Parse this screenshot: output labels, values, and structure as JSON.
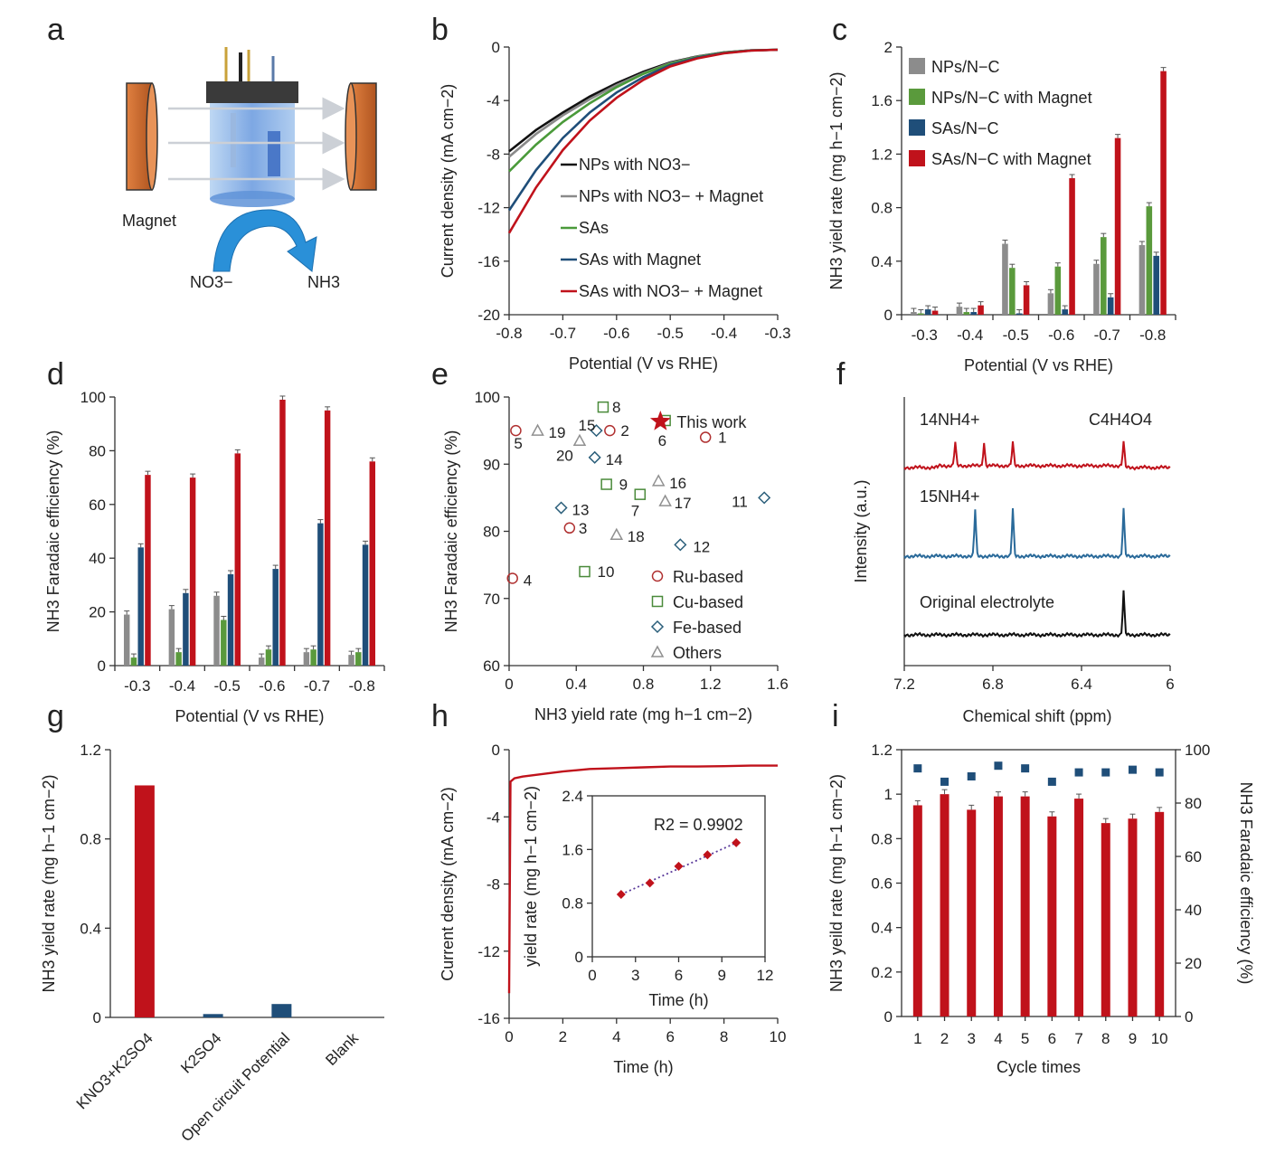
{
  "panels": {
    "a": {
      "label": "a",
      "magnet_label": "Magnet",
      "reactant": "NO3−",
      "product": "NH3",
      "colors": {
        "magnet": "#c8642a",
        "cell": "#8fb8e8",
        "arrow": "#2a90d8",
        "cap": "#3a3a3a"
      }
    },
    "b": {
      "label": "b",
      "chart_data": {
        "type": "line",
        "xlabel": "Potential (V vs RHE)",
        "ylabel": "Current density (mA cm−2)",
        "xlim": [
          -0.8,
          -0.3
        ],
        "ylim": [
          -20,
          0
        ],
        "xticks": [
          "-0.8",
          "-0.7",
          "-0.6",
          "-0.5",
          "-0.4",
          "-0.3"
        ],
        "yticks": [
          "0",
          "-4",
          "-8",
          "-12",
          "-16",
          "-20"
        ],
        "legend_position": "right",
        "series": [
          {
            "name": "NPs with NO3−",
            "color": "#111111",
            "x": [
              -0.8,
              -0.75,
              -0.7,
              -0.65,
              -0.6,
              -0.55,
              -0.5,
              -0.45,
              -0.4,
              -0.35,
              -0.3
            ],
            "y": [
              -7.8,
              -6.2,
              -4.9,
              -3.7,
              -2.7,
              -1.85,
              -1.15,
              -0.7,
              -0.4,
              -0.25,
              -0.2
            ]
          },
          {
            "name": "NPs with NO3− + Magnet",
            "color": "#8a8a8a",
            "x": [
              -0.8,
              -0.75,
              -0.7,
              -0.65,
              -0.6,
              -0.55,
              -0.5,
              -0.45,
              -0.4,
              -0.35,
              -0.3
            ],
            "y": [
              -8.2,
              -6.5,
              -5.1,
              -3.9,
              -2.85,
              -1.95,
              -1.2,
              -0.72,
              -0.42,
              -0.25,
              -0.2
            ]
          },
          {
            "name": "SAs",
            "color": "#4a9a3a",
            "x": [
              -0.8,
              -0.75,
              -0.7,
              -0.65,
              -0.6,
              -0.55,
              -0.5,
              -0.45,
              -0.4,
              -0.35,
              -0.3
            ],
            "y": [
              -9.3,
              -7.3,
              -5.6,
              -4.2,
              -3.0,
              -2.0,
              -1.25,
              -0.75,
              -0.42,
              -0.25,
              -0.2
            ]
          },
          {
            "name": "SAs with Magnet",
            "color": "#1f4e79",
            "x": [
              -0.8,
              -0.75,
              -0.7,
              -0.65,
              -0.6,
              -0.55,
              -0.5,
              -0.45,
              -0.4,
              -0.35,
              -0.3
            ],
            "y": [
              -12.2,
              -9.2,
              -6.8,
              -4.9,
              -3.4,
              -2.25,
              -1.35,
              -0.8,
              -0.45,
              -0.26,
              -0.2
            ]
          },
          {
            "name": "SAs with NO3− + Magnet",
            "color": "#c0121b",
            "x": [
              -0.8,
              -0.75,
              -0.7,
              -0.65,
              -0.6,
              -0.55,
              -0.5,
              -0.45,
              -0.4,
              -0.35,
              -0.3
            ],
            "y": [
              -13.9,
              -10.5,
              -7.7,
              -5.5,
              -3.8,
              -2.45,
              -1.45,
              -0.85,
              -0.47,
              -0.27,
              -0.2
            ]
          }
        ]
      }
    },
    "c": {
      "label": "c",
      "chart_data": {
        "type": "bar",
        "xlabel": "Potential (V vs RHE)",
        "ylabel": "NH3 yield rate (mg h−1 cm−2)",
        "categories": [
          "-0.3",
          "-0.4",
          "-0.5",
          "-0.6",
          "-0.7",
          "-0.8"
        ],
        "ylim": [
          0,
          2
        ],
        "yticks": [
          "0",
          "0.4",
          "0.8",
          "1.2",
          "1.6",
          "2"
        ],
        "legend_position": "top-left",
        "series": [
          {
            "name": "NPs/N−C",
            "color": "#8c8c8c",
            "values": [
              0.02,
              0.06,
              0.53,
              0.16,
              0.38,
              0.52
            ]
          },
          {
            "name": "NPs/N−C with Magnet",
            "color": "#5a9a3c",
            "values": [
              0.01,
              0.02,
              0.35,
              0.36,
              0.58,
              0.81
            ]
          },
          {
            "name": "SAs/N−C",
            "color": "#1f4e79",
            "values": [
              0.04,
              0.02,
              0.01,
              0.04,
              0.13,
              0.44
            ]
          },
          {
            "name": "SAs/N−C with Magnet",
            "color": "#c0121b",
            "values": [
              0.03,
              0.07,
              0.22,
              1.02,
              1.32,
              1.82
            ]
          }
        ]
      }
    },
    "d": {
      "label": "d",
      "chart_data": {
        "type": "bar",
        "xlabel": "Potential (V vs RHE)",
        "ylabel": "NH3 Faradaic efficiency (%)",
        "categories": [
          "-0.3",
          "-0.4",
          "-0.5",
          "-0.6",
          "-0.7",
          "-0.8"
        ],
        "ylim": [
          0,
          100
        ],
        "yticks": [
          "0",
          "20",
          "40",
          "60",
          "80",
          "100"
        ],
        "series": [
          {
            "name": "NPs/N−C",
            "color": "#8c8c8c",
            "values": [
              19,
              21,
              26,
              3,
              5,
              4
            ]
          },
          {
            "name": "NPs/N−C with Magnet",
            "color": "#5a9a3c",
            "values": [
              3,
              5,
              17,
              6,
              6,
              5
            ]
          },
          {
            "name": "SAs/N−C",
            "color": "#1f4e79",
            "values": [
              44,
              27,
              34,
              36,
              53,
              45
            ]
          },
          {
            "name": "SAs/N−C with Magnet",
            "color": "#c0121b",
            "values": [
              71,
              70,
              79,
              99,
              95,
              76
            ]
          }
        ]
      }
    },
    "e": {
      "label": "e",
      "chart_data": {
        "type": "scatter",
        "xlabel": "NH3 yield rate (mg h−1 cm−2)",
        "ylabel": "NH3 Faradaic efficiency (%)",
        "xlim": [
          0,
          1.6
        ],
        "ylim": [
          60,
          100
        ],
        "xticks": [
          "0",
          "0.4",
          "0.8",
          "1.2",
          "1.6"
        ],
        "yticks": [
          "60",
          "70",
          "80",
          "90",
          "100"
        ],
        "legend_position": "bottom-right",
        "legend": [
          {
            "name": "Ru-based",
            "marker": "circle",
            "color": "#b03030"
          },
          {
            "name": "Cu-based",
            "marker": "square",
            "color": "#4a8a3a"
          },
          {
            "name": "Fe-based",
            "marker": "diamond",
            "color": "#2a5e7a"
          },
          {
            "name": "Others",
            "marker": "triangle",
            "color": "#909090"
          }
        ],
        "this_work": {
          "label": "This work",
          "x": 1.02,
          "y": 96.5,
          "color": "#c0121b"
        },
        "points": [
          {
            "label": "1",
            "x": 1.17,
            "y": 94,
            "type": "circle"
          },
          {
            "label": "2",
            "x": 0.6,
            "y": 95,
            "type": "circle"
          },
          {
            "label": "3",
            "x": 0.36,
            "y": 80.5,
            "type": "circle"
          },
          {
            "label": "4",
            "x": 0.02,
            "y": 73,
            "type": "circle"
          },
          {
            "label": "5",
            "x": 0.04,
            "y": 95,
            "type": "circle"
          },
          {
            "label": "6",
            "x": 0.93,
            "y": 96.5,
            "type": "square"
          },
          {
            "label": "7",
            "x": 0.78,
            "y": 85.5,
            "type": "square"
          },
          {
            "label": "8",
            "x": 0.56,
            "y": 98.5,
            "type": "square"
          },
          {
            "label": "9",
            "x": 0.58,
            "y": 87,
            "type": "square"
          },
          {
            "label": "10",
            "x": 0.45,
            "y": 74,
            "type": "square"
          },
          {
            "label": "11",
            "x": 1.52,
            "y": 85,
            "type": "diamond"
          },
          {
            "label": "12",
            "x": 1.02,
            "y": 78,
            "type": "diamond"
          },
          {
            "label": "13",
            "x": 0.31,
            "y": 83.5,
            "type": "diamond"
          },
          {
            "label": "14",
            "x": 0.51,
            "y": 91,
            "type": "diamond"
          },
          {
            "label": "15",
            "x": 0.52,
            "y": 95,
            "type": "diamond"
          },
          {
            "label": "16",
            "x": 0.89,
            "y": 87.5,
            "type": "triangle"
          },
          {
            "label": "17",
            "x": 0.93,
            "y": 84.5,
            "type": "triangle"
          },
          {
            "label": "18",
            "x": 0.64,
            "y": 79.5,
            "type": "triangle"
          },
          {
            "label": "19",
            "x": 0.17,
            "y": 95,
            "type": "triangle"
          },
          {
            "label": "20",
            "x": 0.42,
            "y": 93.5,
            "type": "triangle"
          }
        ]
      }
    },
    "f": {
      "label": "f",
      "chart_data": {
        "type": "line",
        "xlabel": "Chemical shift (ppm)",
        "ylabel": "Intensity (a.u.)",
        "xlim": [
          7.2,
          6
        ],
        "xticks": [
          "7.2",
          "6.8",
          "6.4",
          "6"
        ],
        "series": [
          {
            "name": "14NH4+",
            "color": "#c0121b",
            "peaks_ppm": [
              6.97,
              6.84,
              6.71,
              6.21
            ]
          },
          {
            "name": "15NH4+",
            "color": "#2a6a9a",
            "peaks_ppm": [
              6.88,
              6.71,
              6.21
            ]
          },
          {
            "name": "Original electrolyte",
            "color": "#111111",
            "peaks_ppm": [
              6.21
            ]
          }
        ],
        "annotation": "C4H4O4"
      }
    },
    "g": {
      "label": "g",
      "chart_data": {
        "type": "bar",
        "ylabel": "NH3 yield rate (mg h−1 cm−2)",
        "ylim": [
          0,
          1.2
        ],
        "yticks": [
          "0",
          "0.4",
          "0.8",
          "1.2"
        ],
        "categories": [
          "KNO3+K2SO4",
          "K2SO4",
          "Open circuit Potential",
          "Blank"
        ],
        "values": [
          1.04,
          0.015,
          0.06,
          0
        ],
        "colors": [
          "#c0121b",
          "#1f4e79",
          "#1f4e79",
          "#1f4e79"
        ]
      }
    },
    "h": {
      "label": "h",
      "chart_data": {
        "type": "line",
        "xlabel": "Time (h)",
        "ylabel": "Current density (mA cm−2)",
        "xlim": [
          0,
          10
        ],
        "ylim": [
          -16,
          0
        ],
        "xticks": [
          "0",
          "2",
          "4",
          "6",
          "8",
          "10"
        ],
        "yticks": [
          "0",
          "-4",
          "-8",
          "-12",
          "-16"
        ],
        "series": [
          {
            "name": "",
            "color": "#c0121b",
            "x": [
              0.0,
              0.05,
              0.2,
              0.5,
              1,
              2,
              3,
              4,
              5,
              6,
              7,
              8,
              9,
              10
            ],
            "y": [
              -14.5,
              -1.9,
              -1.7,
              -1.6,
              -1.5,
              -1.3,
              -1.15,
              -1.1,
              -1.05,
              -1.0,
              -1.0,
              -0.98,
              -0.95,
              -0.95
            ]
          }
        ],
        "inset": {
          "type": "scatter",
          "xlabel": "Time (h)",
          "ylabel": "yield rate (mg h−1 cm−2)",
          "xlim": [
            0,
            12
          ],
          "ylim": [
            0,
            2.4
          ],
          "xticks": [
            "0",
            "3",
            "6",
            "9",
            "12"
          ],
          "yticks": [
            "0",
            "0.8",
            "1.6",
            "2.4"
          ],
          "x": [
            2,
            4,
            6,
            8,
            10
          ],
          "y": [
            0.93,
            1.1,
            1.35,
            1.52,
            1.7
          ],
          "annotation": "R2 = 0.9902",
          "color": "#c0121b",
          "fit_color": "#5a3a9a"
        }
      }
    },
    "i": {
      "label": "i",
      "chart_data": {
        "type": "bar",
        "xlabel": "Cycle times",
        "ylabel": "NH3 yeild rate (mg h−1 cm−2)",
        "ylabel_right": "NH3 Faradaic efficiency (%)",
        "categories": [
          "1",
          "2",
          "3",
          "4",
          "5",
          "6",
          "7",
          "8",
          "9",
          "10"
        ],
        "ylim": [
          0,
          1.2
        ],
        "ylim_right": [
          0,
          100
        ],
        "yticks": [
          "0",
          "0.2",
          "0.4",
          "0.6",
          "0.8",
          "1",
          "1.2"
        ],
        "yticks_right": [
          "0",
          "20",
          "40",
          "60",
          "80",
          "100"
        ],
        "series": [
          {
            "name": "yield rate",
            "color": "#c0121b",
            "values": [
              0.95,
              1.0,
              0.93,
              0.99,
              0.99,
              0.9,
              0.98,
              0.87,
              0.89,
              0.92
            ]
          },
          {
            "name": "Faradaic efficiency",
            "color": "#1f4e79",
            "values": [
              93,
              88,
              90,
              94,
              93,
              88,
              91.5,
              91.5,
              92.5,
              91.5
            ]
          }
        ]
      }
    }
  }
}
